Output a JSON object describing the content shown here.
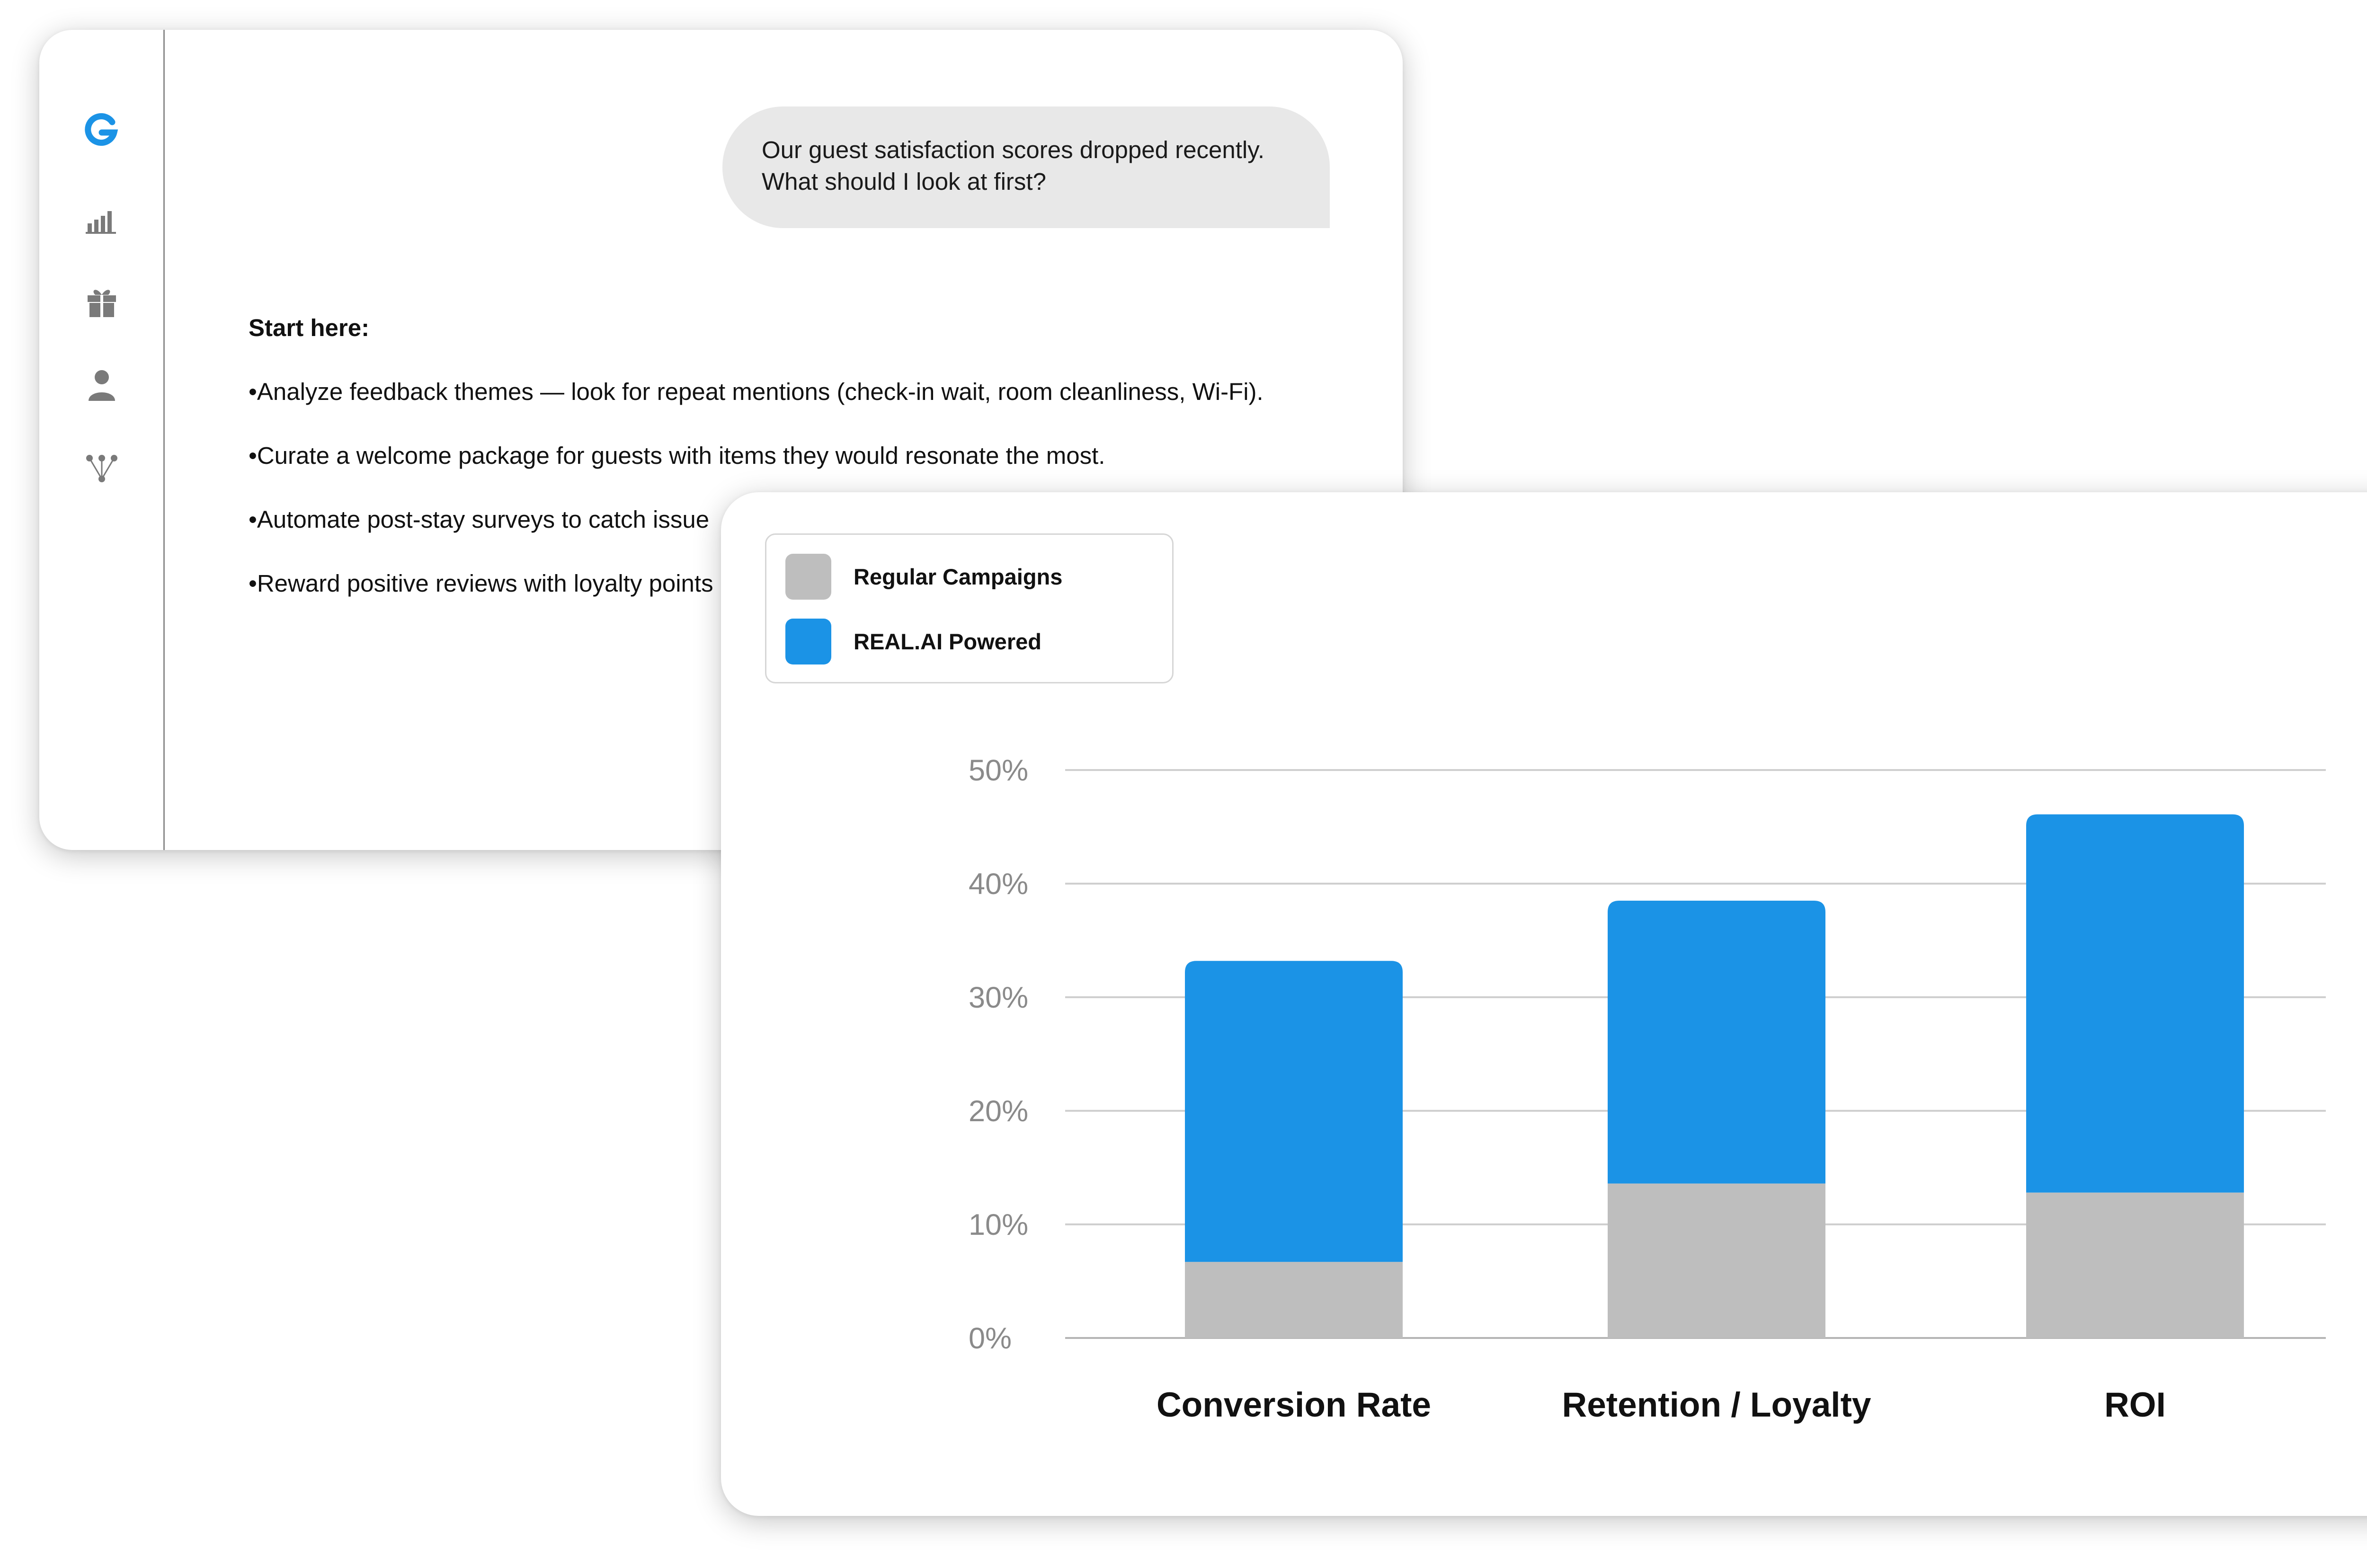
{
  "sidebar": {
    "icons": [
      "logo-g-icon",
      "bar-chart-icon",
      "gift-icon",
      "user-icon",
      "network-icon"
    ],
    "accent": "#1B93E6",
    "icon_color": "#7a7a7a"
  },
  "chat": {
    "user_message": {
      "line1": "Our guest satisfaction scores dropped recently.",
      "line2": "What should I look at first?"
    },
    "answer": {
      "heading": "Start here:",
      "bullets": [
        "•Analyze feedback themes — look for repeat mentions (check-in wait, room cleanliness, Wi-Fi).",
        "•Curate a welcome package for guests with items they would resonate the most.",
        "•Automate post-stay surveys to catch issue",
        "•Reward positive reviews with loyalty points"
      ]
    }
  },
  "legend": {
    "items": [
      {
        "label": "Regular Campaigns",
        "color": "#BEBEBE"
      },
      {
        "label": "REAL.AI Powered",
        "color": "#1B93E6"
      }
    ]
  },
  "chart_data": {
    "type": "bar",
    "stacked": true,
    "categories": [
      "Conversion Rate",
      "Retention / Loyalty",
      "ROI"
    ],
    "series": [
      {
        "name": "Regular Campaigns",
        "color": "#BEBEBE",
        "values": [
          6.7,
          13.6,
          12.8
        ]
      },
      {
        "name": "REAL.AI Powered",
        "color": "#1B93E6",
        "values": [
          26.5,
          24.9,
          33.3
        ]
      }
    ],
    "yticks": [
      "0%",
      "10%",
      "20%",
      "30%",
      "40%",
      "50%"
    ],
    "ylim": [
      0,
      50
    ],
    "grid": true,
    "legend_position": "top-left"
  }
}
